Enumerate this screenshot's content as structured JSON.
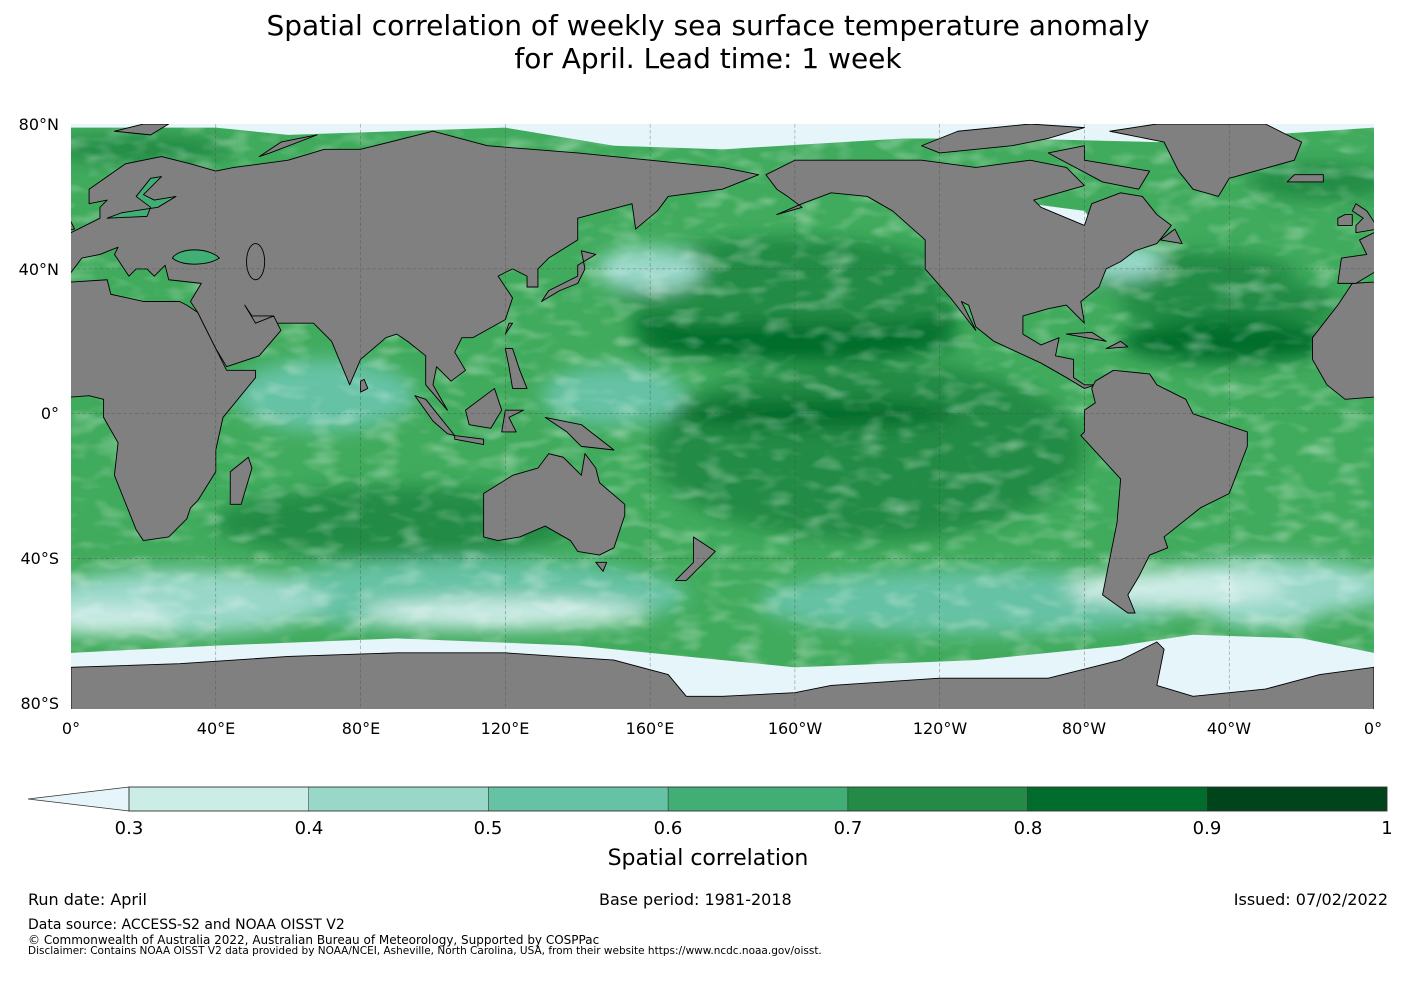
{
  "title": {
    "line1": "Spatial correlation of weekly sea surface temperature anomaly",
    "line2": "for April. Lead time: 1 week"
  },
  "map": {
    "projection": "equirectangular, 0° to 360° longitude",
    "lat_labels": [
      "80°N",
      "40°N",
      "0°",
      "40°S",
      "80°S"
    ],
    "lon_labels": [
      "0°",
      "40°E",
      "80°E",
      "120°E",
      "160°E",
      "160°W",
      "120°W",
      "80°W",
      "40°W",
      "0°"
    ],
    "land_color": "#808080",
    "ocean_base_color": "#41ab5d"
  },
  "colorbar": {
    "label": "Spatial correlation",
    "ticks": [
      "0.3",
      "0.4",
      "0.5",
      "0.6",
      "0.7",
      "0.8",
      "0.9",
      "1"
    ],
    "under_color": "#e5f5f9",
    "colors": [
      "#ccece6",
      "#99d8c9",
      "#66c2a4",
      "#41ae76",
      "#238b45",
      "#006d2c",
      "#00441b"
    ]
  },
  "footer": {
    "run_date": "Run date: April",
    "base_period": "Base period: 1981-2018",
    "issued": "Issued: 07/02/2022",
    "data_source": "Data source: ACCESS-S2 and NOAA OISST V2",
    "copyright": "© Commonwealth of Australia 2022, Australian Bureau of Meteorology, Supported by COSPPac",
    "disclaimer": "Disclaimer: Contains NOAA OISST V2 data provided by NOAA/NCEI, Asheville, North Carolina, USA, from their website https://www.ncdc.noaa.gov/oisst."
  }
}
